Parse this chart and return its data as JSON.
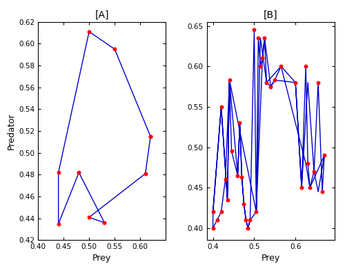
{
  "panel_A": {
    "title": "[A]",
    "xlabel": "Prey",
    "ylabel": "Predator",
    "xlim": [
      0.4,
      0.65
    ],
    "ylim": [
      0.42,
      0.62
    ],
    "xticks": [
      0.4,
      0.45,
      0.5,
      0.55,
      0.6
    ],
    "yticks": [
      0.42,
      0.44,
      0.46,
      0.48,
      0.5,
      0.52,
      0.54,
      0.56,
      0.58,
      0.6,
      0.62
    ],
    "scatter_x": [
      0.44,
      0.44,
      0.48,
      0.5,
      0.5,
      0.53,
      0.55,
      0.61,
      0.62,
      0.62
    ],
    "scatter_y": [
      0.435,
      0.482,
      0.482,
      0.441,
      0.611,
      0.436,
      0.595,
      0.481,
      0.515,
      0.515
    ],
    "line_x": [
      0.44,
      0.5,
      0.55,
      0.62,
      0.62,
      0.61,
      0.5,
      0.53,
      0.48,
      0.44,
      0.44
    ],
    "line_y": [
      0.482,
      0.611,
      0.595,
      0.515,
      0.515,
      0.481,
      0.441,
      0.436,
      0.482,
      0.435,
      0.482
    ]
  },
  "panel_B": {
    "title": "[B]",
    "xlabel": "Prey",
    "ylabel": "",
    "xlim": [
      0.385,
      0.695
    ],
    "ylim": [
      0.385,
      0.655
    ],
    "xticks": [
      0.4,
      0.5,
      0.6
    ],
    "yticks": [
      0.4,
      0.45,
      0.5,
      0.55,
      0.6,
      0.65
    ],
    "scatter_x": [
      0.4,
      0.4,
      0.41,
      0.42,
      0.42,
      0.43,
      0.435,
      0.44,
      0.445,
      0.46,
      0.465,
      0.47,
      0.475,
      0.48,
      0.485,
      0.49,
      0.5,
      0.505,
      0.51,
      0.515,
      0.52,
      0.525,
      0.53,
      0.54,
      0.55,
      0.565,
      0.6,
      0.615,
      0.625,
      0.63,
      0.635,
      0.645,
      0.655,
      0.665,
      0.67
    ],
    "scatter_y": [
      0.4,
      0.42,
      0.41,
      0.42,
      0.55,
      0.46,
      0.435,
      0.583,
      0.495,
      0.465,
      0.53,
      0.463,
      0.43,
      0.41,
      0.4,
      0.41,
      0.645,
      0.42,
      0.635,
      0.6,
      0.61,
      0.635,
      0.58,
      0.575,
      0.583,
      0.6,
      0.58,
      0.45,
      0.6,
      0.48,
      0.45,
      0.47,
      0.58,
      0.445,
      0.49
    ],
    "line_x": [
      0.4,
      0.42,
      0.435,
      0.44,
      0.505,
      0.515,
      0.53,
      0.565,
      0.625,
      0.635,
      0.67,
      0.655,
      0.645,
      0.63,
      0.615,
      0.6,
      0.55,
      0.54,
      0.525,
      0.52,
      0.505,
      0.49,
      0.485,
      0.48,
      0.475,
      0.47,
      0.465,
      0.46,
      0.445,
      0.44,
      0.43,
      0.42,
      0.41,
      0.4,
      0.4,
      0.42,
      0.435,
      0.44,
      0.46,
      0.465,
      0.47,
      0.475,
      0.48,
      0.485,
      0.49,
      0.5,
      0.505,
      0.51,
      0.515,
      0.52,
      0.525,
      0.53,
      0.54,
      0.55,
      0.565,
      0.6,
      0.615,
      0.625,
      0.63,
      0.635,
      0.645,
      0.655,
      0.665,
      0.67
    ],
    "line_y": [
      0.42,
      0.55,
      0.435,
      0.583,
      0.42,
      0.635,
      0.58,
      0.6,
      0.48,
      0.45,
      0.49,
      0.445,
      0.47,
      0.58,
      0.45,
      0.58,
      0.583,
      0.575,
      0.635,
      0.61,
      0.42,
      0.41,
      0.4,
      0.41,
      0.43,
      0.463,
      0.53,
      0.465,
      0.495,
      0.583,
      0.46,
      0.42,
      0.41,
      0.4,
      0.42,
      0.55,
      0.435,
      0.583,
      0.465,
      0.53,
      0.463,
      0.43,
      0.41,
      0.4,
      0.41,
      0.645,
      0.42,
      0.635,
      0.6,
      0.61,
      0.635,
      0.58,
      0.575,
      0.583,
      0.6,
      0.58,
      0.45,
      0.6,
      0.48,
      0.45,
      0.47,
      0.58,
      0.445,
      0.49
    ]
  },
  "line_color": "#0000CD",
  "dot_color": "#FF0000",
  "dot_size": 18,
  "line_width": 1.0,
  "background_color": "#FFFFFF"
}
